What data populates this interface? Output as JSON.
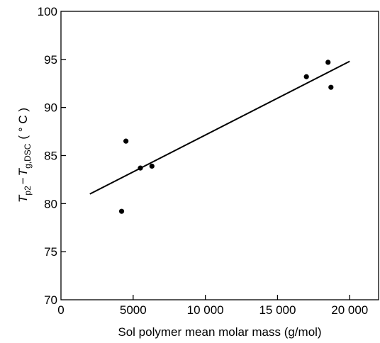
{
  "chart_data": {
    "type": "scatter",
    "title": "",
    "xlabel": "Sol polymer mean molar mass (g/mol)",
    "ylabel_parts": {
      "t1": "T",
      "t1_sub": "p2",
      "minus": "−",
      "t2": "T",
      "t2_sub": "g,DSC",
      "unit": "( ° C )"
    },
    "xlim": [
      0,
      22000
    ],
    "ylim": [
      70,
      100
    ],
    "x_ticks": [
      0,
      5000,
      10000,
      15000,
      20000
    ],
    "x_tick_labels": [
      "0",
      "5000",
      "10 000",
      "15 000",
      "20 000"
    ],
    "y_ticks": [
      70,
      75,
      80,
      85,
      90,
      95,
      100
    ],
    "y_tick_labels": [
      "70",
      "75",
      "80",
      "85",
      "90",
      "95",
      "100"
    ],
    "grid": false,
    "series": [
      {
        "values": [
          {
            "x": 4200,
            "y": 79.2
          },
          {
            "x": 4500,
            "y": 86.5
          },
          {
            "x": 5500,
            "y": 83.7
          },
          {
            "x": 6300,
            "y": 83.9
          },
          {
            "x": 17000,
            "y": 93.2
          },
          {
            "x": 18500,
            "y": 94.7
          },
          {
            "x": 18700,
            "y": 92.1
          }
        ]
      }
    ],
    "fit_line": {
      "x": [
        2000,
        20000
      ],
      "y": [
        81.0,
        94.8
      ]
    },
    "colors": {
      "marks": "#000000",
      "axes": "#000000"
    }
  }
}
